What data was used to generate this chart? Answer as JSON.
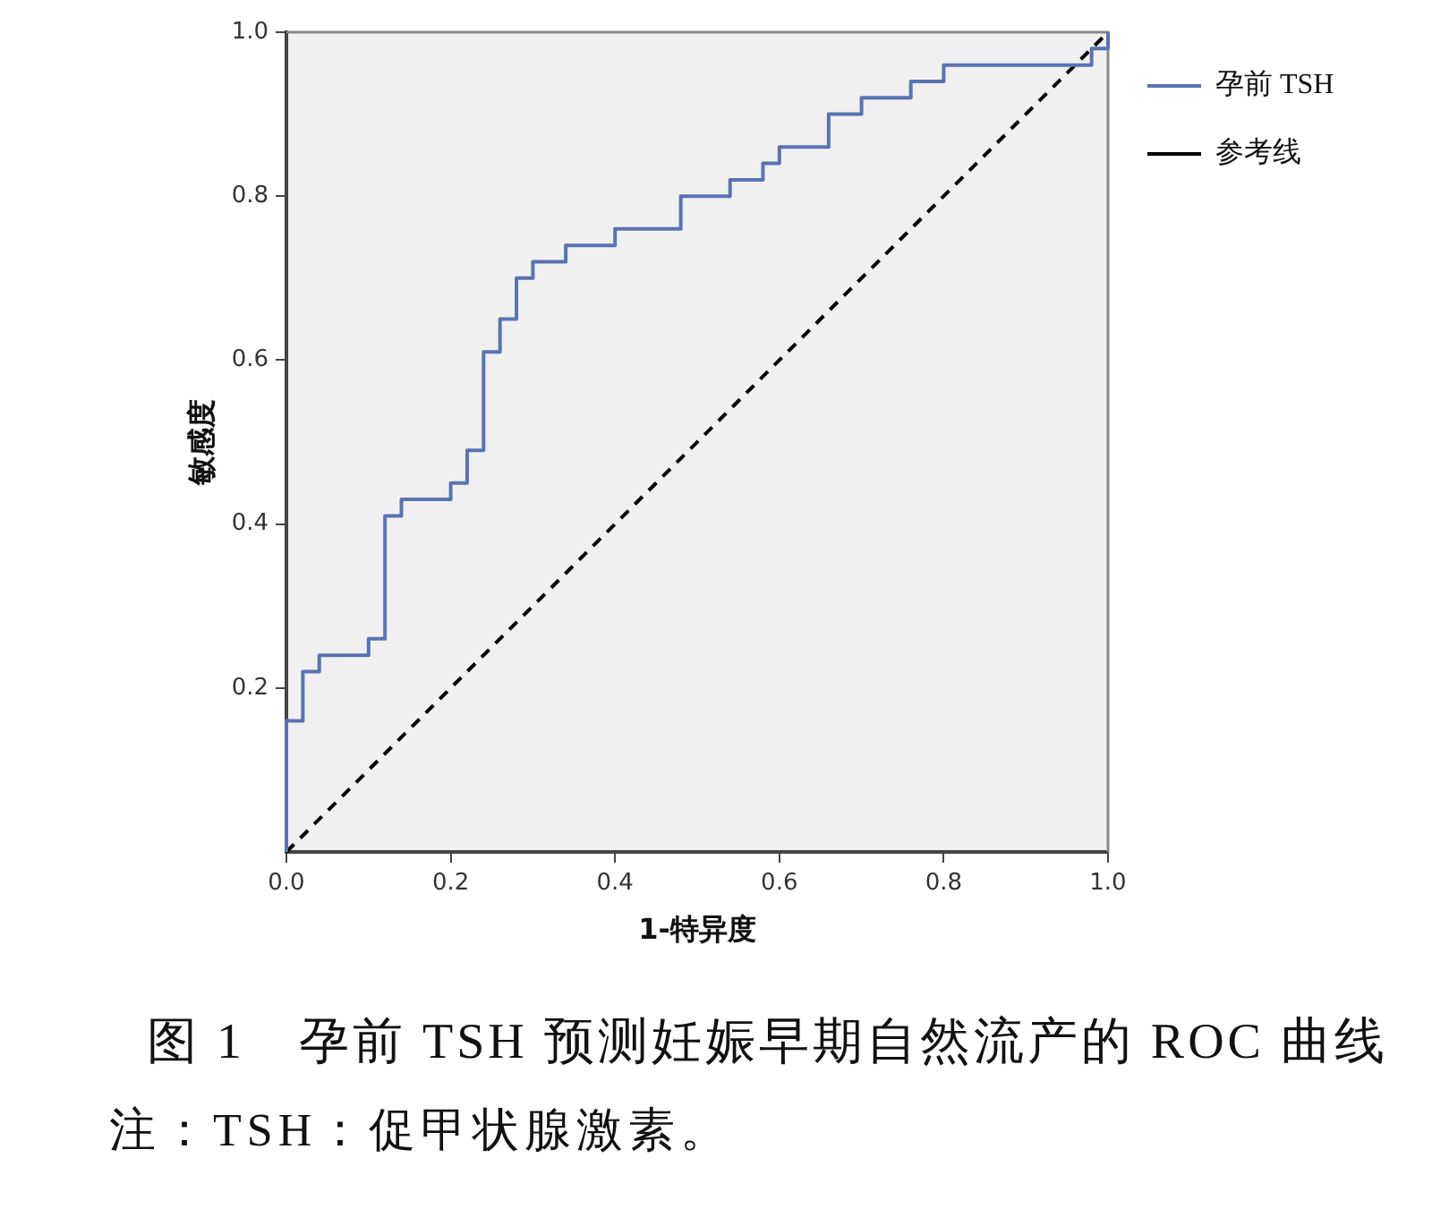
{
  "chart_data": {
    "type": "step",
    "title": "图 1　孕前 TSH 预测妊娠早期自然流产的 ROC 曲线",
    "xlabel": "1-特异度",
    "ylabel": "敏感度",
    "annotations": [
      "注：TSH：促甲状腺激素。"
    ],
    "xlim": [
      0,
      1
    ],
    "ylim": [
      0,
      1
    ],
    "xticks": [
      {
        "value": 0,
        "label": "0.0"
      },
      0.2,
      0.4,
      0.6,
      0.8,
      {
        "value": 1,
        "label": "1.0"
      }
    ],
    "yticks": [
      0.2,
      0.4,
      0.6,
      0.8,
      {
        "value": 1,
        "label": "1.0"
      }
    ],
    "grid": false,
    "legend": "right",
    "marker": "none",
    "series": [
      {
        "name": "孕前 TSH",
        "color": "#5b72b2",
        "line_style": "solid",
        "x": [
          0,
          0,
          0.02,
          0.04,
          0.1,
          0.12,
          0.14,
          0.2,
          0.22,
          0.24,
          0.26,
          0.28,
          0.3,
          0.34,
          0.4,
          0.48,
          0.54,
          0.58,
          0.6,
          0.66,
          0.7,
          0.76,
          0.8,
          0.98,
          1.0
        ],
        "values": [
          0,
          0.16,
          0.22,
          0.24,
          0.26,
          0.41,
          0.43,
          0.45,
          0.49,
          0.61,
          0.65,
          0.7,
          0.72,
          0.74,
          0.76,
          0.8,
          0.82,
          0.84,
          0.86,
          0.9,
          0.92,
          0.94,
          0.96,
          0.98,
          1.0
        ]
      },
      {
        "name": "参考线",
        "type": "line",
        "color": "#000000",
        "line_style": "dashed",
        "x": [
          0,
          1
        ],
        "values": [
          0,
          1
        ]
      }
    ]
  }
}
